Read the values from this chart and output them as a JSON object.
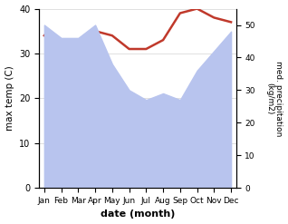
{
  "months": [
    "Jan",
    "Feb",
    "Mar",
    "Apr",
    "May",
    "Jun",
    "Jul",
    "Aug",
    "Sep",
    "Oct",
    "Nov",
    "Dec"
  ],
  "month_indices": [
    0,
    1,
    2,
    3,
    4,
    5,
    6,
    7,
    8,
    9,
    10,
    11
  ],
  "precipitation": [
    50,
    46,
    46,
    50,
    38,
    30,
    27,
    29,
    27,
    36,
    42,
    48
  ],
  "temperature": [
    34,
    32,
    32,
    35,
    34,
    31,
    31,
    33,
    39,
    40,
    38,
    37
  ],
  "temp_color": "#c0392b",
  "precip_fill_color": "#b8c4ee",
  "temp_ylim": [
    0,
    40
  ],
  "precip_ylim": [
    0,
    55
  ],
  "temp_yticks": [
    0,
    10,
    20,
    30,
    40
  ],
  "precip_yticks": [
    0,
    10,
    20,
    30,
    40,
    50
  ],
  "xlabel": "date (month)",
  "ylabel_left": "max temp (C)",
  "ylabel_right": "med. precipitation\n(kg/m2)",
  "bg_color": "#ffffff",
  "axes_bg_color": "#ffffff"
}
